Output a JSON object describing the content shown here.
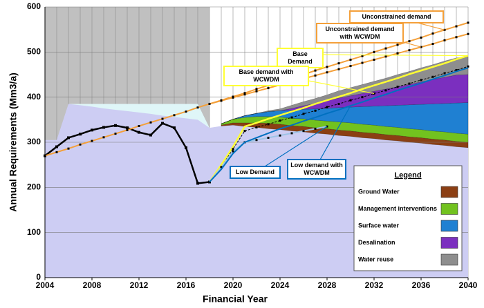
{
  "chart_data": {
    "type": "area-line",
    "x_label": "Financial Year",
    "y_label": "Annual Requirements (Mm3/a)",
    "xlim": [
      2004,
      2040
    ],
    "ylim": [
      0,
      600
    ],
    "xticks": [
      2004,
      2008,
      2012,
      2016,
      2020,
      2024,
      2028,
      2032,
      2036,
      2040
    ],
    "yticks": [
      0,
      100,
      200,
      300,
      400,
      500,
      600
    ],
    "grid": true,
    "legend_title": "Legend",
    "legend_position": "lower right",
    "x": [
      2004,
      2005,
      2006,
      2007,
      2008,
      2009,
      2010,
      2011,
      2012,
      2013,
      2014,
      2015,
      2016,
      2017,
      2018,
      2019,
      2020,
      2021,
      2022,
      2023,
      2024,
      2025,
      2026,
      2027,
      2028,
      2029,
      2030,
      2031,
      2032,
      2033,
      2034,
      2035,
      2036,
      2037,
      2038,
      2039,
      2040
    ],
    "series": [
      {
        "type": "area",
        "color": "#dff6f8",
        "values": [
          null,
          null,
          385,
          385,
          385,
          385,
          385,
          385,
          385,
          385,
          385,
          385,
          385,
          385,
          332,
          null,
          null,
          null,
          null,
          null,
          null,
          null,
          null,
          null,
          null,
          null,
          null,
          null,
          null,
          null,
          null,
          null,
          null,
          null,
          null,
          null,
          null
        ]
      },
      {
        "type": "area",
        "color": "#cdcdf3",
        "values": [
          305,
          305,
          385,
          382,
          379,
          375,
          372,
          369,
          366,
          363,
          359,
          356,
          353,
          350,
          332,
          336,
          338,
          335,
          333,
          330,
          328,
          325,
          323,
          320,
          318,
          315,
          313,
          310,
          308,
          305,
          303,
          300,
          298,
          295,
          293,
          290,
          288
        ]
      },
      {
        "type": "area",
        "stack": true,
        "name": "Ground Water",
        "color": "#8b3f14",
        "values": [
          null,
          null,
          null,
          null,
          null,
          null,
          null,
          null,
          null,
          null,
          null,
          null,
          null,
          null,
          null,
          2,
          5,
          8,
          10,
          12,
          12,
          12,
          12,
          12,
          12,
          12,
          12,
          12,
          12,
          12,
          12,
          12,
          12,
          12,
          12,
          12,
          12
        ]
      },
      {
        "type": "area",
        "stack": true,
        "name": "Management interventions",
        "color": "#72c21f",
        "values": [
          null,
          null,
          null,
          null,
          null,
          null,
          null,
          null,
          null,
          null,
          null,
          null,
          null,
          null,
          null,
          3,
          8,
          12,
          14,
          15,
          16,
          16,
          17,
          17,
          17,
          18,
          18,
          18,
          18,
          18,
          18,
          18,
          18,
          18,
          18,
          18,
          18
        ]
      },
      {
        "type": "area",
        "stack": true,
        "name": "Surface water",
        "color": "#1f80d2",
        "values": [
          null,
          null,
          null,
          null,
          null,
          null,
          null,
          null,
          null,
          null,
          null,
          null,
          null,
          null,
          null,
          0,
          0,
          4,
          7,
          11,
          14,
          18,
          21,
          25,
          28,
          32,
          35,
          39,
          42,
          46,
          49,
          53,
          56,
          60,
          63,
          67,
          70
        ]
      },
      {
        "type": "area",
        "stack": true,
        "name": "Desalination",
        "color": "#7b2fbf",
        "values": [
          null,
          null,
          null,
          null,
          null,
          null,
          null,
          null,
          null,
          null,
          null,
          null,
          null,
          null,
          null,
          0,
          0,
          0,
          0,
          0,
          0,
          4,
          8,
          12,
          17,
          21,
          25,
          29,
          33,
          37,
          41,
          45,
          50,
          54,
          58,
          62,
          62
        ]
      },
      {
        "type": "area",
        "stack": true,
        "name": "Water reuse",
        "color": "#8e8e8e",
        "values": [
          null,
          null,
          null,
          null,
          null,
          null,
          null,
          null,
          null,
          null,
          null,
          null,
          null,
          null,
          null,
          0,
          0,
          0,
          0,
          2,
          4,
          7,
          9,
          11,
          13,
          16,
          18,
          20,
          22,
          24,
          27,
          29,
          31,
          33,
          36,
          38,
          40
        ]
      },
      {
        "type": "line",
        "color": "#000000",
        "width": 2.5,
        "markers": true,
        "values": [
          270,
          290,
          310,
          318,
          327,
          333,
          337,
          332,
          322,
          316,
          342,
          332,
          288,
          209,
          212,
          null,
          null,
          null,
          null,
          null,
          null,
          null,
          null,
          null,
          null,
          null,
          null,
          null,
          null,
          null,
          null,
          null,
          null,
          null,
          null,
          null,
          null
        ]
      },
      {
        "type": "line",
        "name": "Unconstrained demand",
        "color": "#f4a03a",
        "width": 2,
        "markers": true,
        "values": [
          270,
          278,
          286,
          295,
          303,
          311,
          319,
          327,
          336,
          344,
          352,
          360,
          368,
          377,
          385,
          393,
          401,
          409,
          418,
          426,
          434,
          442,
          450,
          459,
          467,
          475,
          483,
          491,
          500,
          508,
          516,
          524,
          532,
          541,
          549,
          557,
          565
        ]
      },
      {
        "type": "line",
        "name": "Unconstrained demand with WCWDM",
        "color": "#f4a03a",
        "width": 2,
        "markers": true,
        "values": [
          null,
          null,
          null,
          null,
          null,
          null,
          null,
          null,
          null,
          null,
          null,
          null,
          null,
          null,
          385,
          392,
          399,
          406,
          413,
          420,
          427,
          434,
          441,
          448,
          455,
          462,
          469,
          476,
          483,
          490,
          497,
          504,
          511,
          518,
          526,
          533,
          540
        ]
      },
      {
        "type": "line",
        "name": "Base Demand",
        "color": "#ffff33",
        "width": 2.5,
        "values": [
          null,
          null,
          null,
          null,
          null,
          null,
          null,
          null,
          null,
          null,
          null,
          null,
          null,
          null,
          212,
          250,
          290,
          335,
          343,
          352,
          360,
          368,
          376,
          385,
          393,
          401,
          409,
          418,
          426,
          434,
          442,
          451,
          459,
          467,
          475,
          484,
          492
        ]
      },
      {
        "type": "line",
        "name": "Base demand with WCWDM",
        "color": "#000000",
        "width": 1,
        "dash": true,
        "markers": true,
        "values": [
          null,
          null,
          null,
          null,
          null,
          null,
          null,
          null,
          null,
          null,
          null,
          null,
          null,
          null,
          212,
          245,
          285,
          325,
          333,
          340,
          348,
          355,
          363,
          370,
          378,
          385,
          393,
          400,
          408,
          415,
          423,
          430,
          438,
          445,
          453,
          460,
          468
        ]
      },
      {
        "type": "line",
        "name": "Low Demand",
        "color": "#9dc3e6",
        "width": 2,
        "markers": true,
        "values": [
          null,
          null,
          null,
          null,
          null,
          null,
          null,
          null,
          null,
          null,
          null,
          null,
          null,
          null,
          212,
          245,
          280,
          300,
          305,
          310,
          315,
          320,
          325,
          330,
          335,
          null,
          null,
          null,
          null,
          null,
          null,
          null,
          null,
          null,
          null,
          null,
          null
        ]
      },
      {
        "type": "line",
        "name": "Low demand with WCWDM",
        "color": "#0070c0",
        "width": 2,
        "values": [
          null,
          null,
          null,
          null,
          null,
          null,
          null,
          null,
          null,
          null,
          null,
          null,
          null,
          null,
          212,
          240,
          275,
          300,
          310,
          320,
          330,
          338,
          347,
          355,
          364,
          372,
          381,
          389,
          398,
          406,
          415,
          423,
          431,
          440,
          448,
          457,
          465
        ]
      }
    ]
  }
}
